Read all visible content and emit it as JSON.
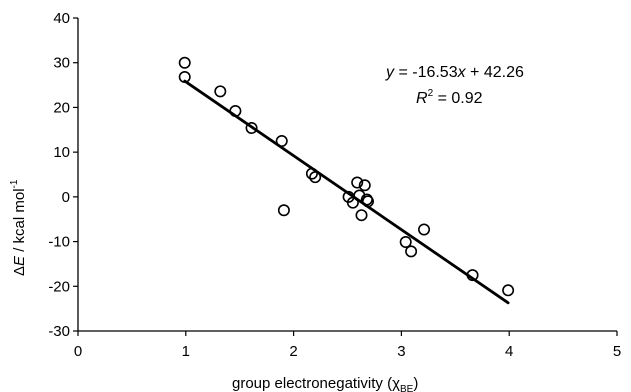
{
  "chart_data": {
    "type": "scatter",
    "xlabel": "group electronegativity (χBE)",
    "xlabel_parts": {
      "main": "group electronegativity (",
      "chi": "χ",
      "sub": "BE",
      "close": ")"
    },
    "ylabel": "ΔE / kcal mol-1",
    "ylabel_parts": {
      "delta": "Δ",
      "E": "E",
      "rest": " / kcal mol",
      "sup": "-1"
    },
    "xlim": [
      0,
      5
    ],
    "ylim": [
      -30,
      40
    ],
    "xticks": [
      0,
      1,
      2,
      3,
      4,
      5
    ],
    "yticks": [
      -30,
      -20,
      -10,
      0,
      10,
      20,
      30,
      40
    ],
    "grid": false,
    "points": [
      {
        "x": 0.99,
        "y": 30.0
      },
      {
        "x": 0.99,
        "y": 26.8
      },
      {
        "x": 1.32,
        "y": 23.6
      },
      {
        "x": 1.46,
        "y": 19.2
      },
      {
        "x": 1.61,
        "y": 15.4
      },
      {
        "x": 1.89,
        "y": 12.5
      },
      {
        "x": 1.91,
        "y": -3.0
      },
      {
        "x": 2.17,
        "y": 5.2
      },
      {
        "x": 2.2,
        "y": 4.4
      },
      {
        "x": 2.51,
        "y": 0.0
      },
      {
        "x": 2.55,
        "y": -1.3
      },
      {
        "x": 2.59,
        "y": 3.2
      },
      {
        "x": 2.61,
        "y": 0.3
      },
      {
        "x": 2.63,
        "y": -4.1
      },
      {
        "x": 2.66,
        "y": 2.6
      },
      {
        "x": 2.68,
        "y": -0.6
      },
      {
        "x": 2.69,
        "y": -1.0
      },
      {
        "x": 3.04,
        "y": -10.1
      },
      {
        "x": 3.09,
        "y": -12.2
      },
      {
        "x": 3.21,
        "y": -7.3
      },
      {
        "x": 3.66,
        "y": -17.5
      },
      {
        "x": 3.99,
        "y": -20.9
      }
    ],
    "fit": {
      "slope": -16.53,
      "intercept": 42.26,
      "x_range": [
        0.99,
        3.99
      ]
    },
    "annotations": {
      "equation": {
        "y": "y",
        "eq": " = -16.53",
        "x": "x",
        "rest": " + 42.26"
      },
      "r2": {
        "R": "R",
        "sup": "2",
        "rest": " = 0.92"
      }
    }
  }
}
